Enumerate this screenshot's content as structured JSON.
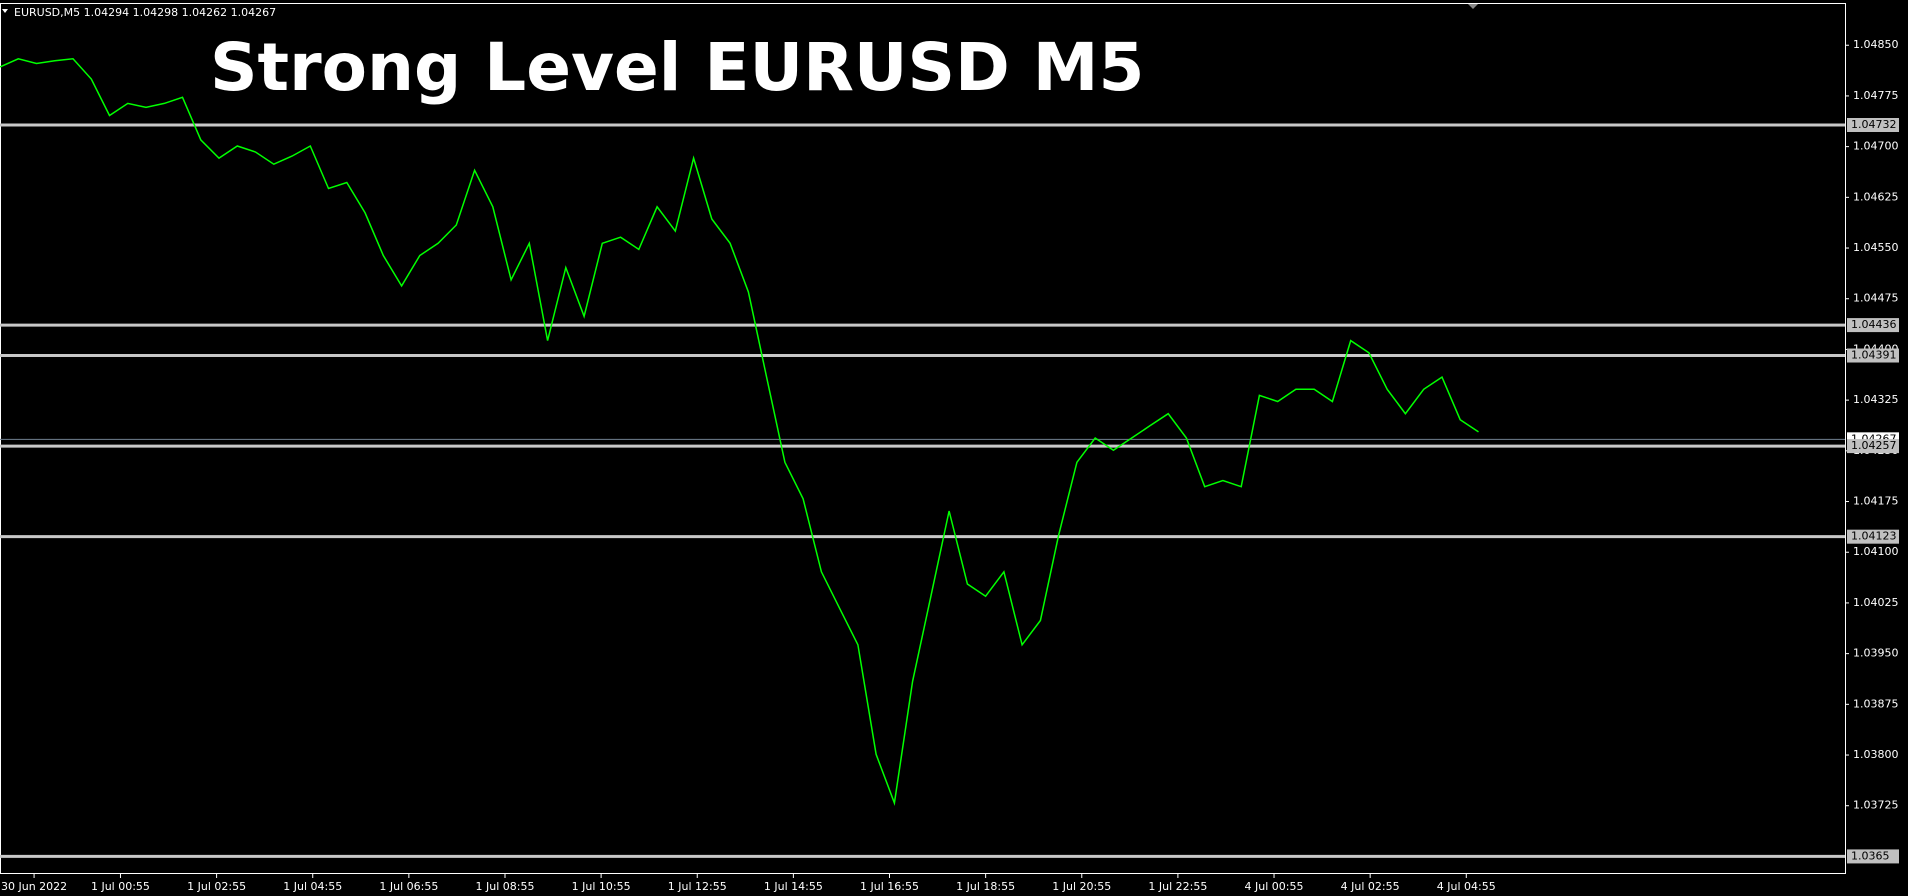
{
  "chart_data": {
    "type": "line",
    "header": "EURUSD,M5  1.04294 1.04298 1.04262 1.04267",
    "title": "Strong Level  EURUSD M5",
    "color": "#00ff00",
    "values": [
      1.04818,
      1.0483,
      1.04823,
      1.04827,
      1.0483,
      1.048,
      1.04746,
      1.04764,
      1.04758,
      1.04764,
      1.04773,
      1.0471,
      1.04683,
      1.04701,
      1.04692,
      1.04674,
      1.04686,
      1.04701,
      1.04638,
      1.04647,
      1.04602,
      1.04539,
      1.04494,
      1.04539,
      1.04557,
      1.04584,
      1.04665,
      1.04611,
      1.04503,
      1.04557,
      1.04413,
      1.04521,
      1.04449,
      1.04557,
      1.04566,
      1.04548,
      1.04611,
      1.04575,
      1.04683,
      1.04593,
      1.04557,
      1.04485,
      1.04359,
      1.04233,
      1.04179,
      1.04071,
      1.04017,
      1.03963,
      1.03801,
      1.03729,
      1.03909,
      1.04035,
      1.04161,
      1.04053,
      1.04035,
      1.04071,
      1.03963,
      1.03999,
      1.04125,
      1.04233,
      1.04269,
      1.04251,
      1.04269,
      1.04287,
      1.04305,
      1.04269,
      1.04197,
      1.04206,
      1.04197,
      1.04332,
      1.04323,
      1.04341,
      1.04341,
      1.04323,
      1.04413,
      1.04395,
      1.04341,
      1.04305,
      1.04341,
      1.04359,
      1.04296,
      1.04278
    ],
    "x_labels": [
      "30 Jun 2022",
      "1 Jul 00:55",
      "1 Jul 02:55",
      "1 Jul 04:55",
      "1 Jul 06:55",
      "1 Jul 08:55",
      "1 Jul 10:55",
      "1 Jul 12:55",
      "1 Jul 14:55",
      "1 Jul 16:55",
      "1 Jul 18:55",
      "1 Jul 20:55",
      "1 Jul 22:55",
      "4 Jul 00:55",
      "4 Jul 02:55",
      "4 Jul 04:55"
    ],
    "ylim": [
      1.03624,
      1.04911
    ],
    "yticks": [
      {
        "value": 1.0485,
        "label": "1.04850"
      },
      1.04775,
      {
        "value": 1.047,
        "label": "1.04700"
      },
      1.04625,
      {
        "value": 1.0455,
        "label": "1.04550"
      },
      1.04475,
      {
        "value": 1.044,
        "label": "1.04400"
      },
      1.04325,
      {
        "value": 1.0425,
        "label": "1.04250"
      },
      1.04175,
      {
        "value": 1.041,
        "label": "1.04100"
      },
      1.04025,
      {
        "value": 1.0395,
        "label": "1.03950"
      },
      1.03875,
      {
        "value": 1.038,
        "label": "1.03800"
      },
      1.03725
    ],
    "current_price": 1.04267,
    "levels": [
      1.04732,
      1.04436,
      1.04391,
      1.04257,
      1.04123,
      1.0365
    ]
  }
}
